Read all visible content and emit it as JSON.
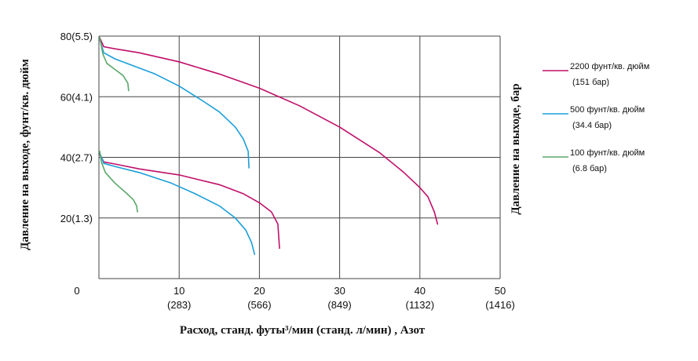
{
  "chart_data": {
    "type": "line",
    "xlabel": "Расход, станд. футы³/мин (станд. л/мин) , Азот",
    "ylabel_left": "Давление на выходе, фунт/кв. дюйм",
    "ylabel_right": "Давление на выходе, бар",
    "xlim": [
      0,
      50
    ],
    "ylim": [
      0,
      80
    ],
    "grid": true,
    "legend_position": "right",
    "x_ticks": [
      {
        "value": 0,
        "label": "0",
        "sublabel": ""
      },
      {
        "value": 10,
        "label": "10",
        "sublabel": "(283)"
      },
      {
        "value": 20,
        "label": "20",
        "sublabel": "(566)"
      },
      {
        "value": 30,
        "label": "30",
        "sublabel": "(849)"
      },
      {
        "value": 40,
        "label": "40",
        "sublabel": "(1132)"
      },
      {
        "value": 50,
        "label": "50",
        "sublabel": "(1416)"
      }
    ],
    "y_ticks": [
      {
        "value": 20,
        "label": "20(1.3)"
      },
      {
        "value": 40,
        "label": "40(2.7)"
      },
      {
        "value": 60,
        "label": "60(4.1)"
      },
      {
        "value": 80,
        "label": "80(5.5)"
      }
    ],
    "series": [
      {
        "name": "2200 фунт/кв. дюйм",
        "name_sub": "(151 бар)",
        "color": "#c0106a",
        "curves": [
          [
            [
              0.1,
              79.5
            ],
            [
              0.6,
              76.5
            ],
            [
              2,
              75.8
            ],
            [
              5,
              74.5
            ],
            [
              10,
              71.5
            ],
            [
              15,
              67.5
            ],
            [
              20,
              62.8
            ],
            [
              25,
              57
            ],
            [
              30,
              50
            ],
            [
              35,
              41.5
            ],
            [
              38,
              35
            ],
            [
              40,
              30
            ],
            [
              41,
              27
            ],
            [
              41.8,
              22
            ],
            [
              42.2,
              18
            ]
          ],
          [
            [
              0.1,
              41
            ],
            [
              0.6,
              38.5
            ],
            [
              2,
              37.8
            ],
            [
              5,
              36.2
            ],
            [
              10,
              34.2
            ],
            [
              15,
              31
            ],
            [
              18,
              28
            ],
            [
              20,
              25
            ],
            [
              21.5,
              22
            ],
            [
              22.3,
              18
            ],
            [
              22.5,
              10
            ]
          ]
        ]
      },
      {
        "name": "500 фунт/кв. дюйм",
        "name_sub": "(34.4 бар)",
        "color": "#1a9fd8",
        "curves": [
          [
            [
              0.1,
              79
            ],
            [
              0.6,
              74.5
            ],
            [
              2,
              72.5
            ],
            [
              4,
              70.5
            ],
            [
              7,
              67.5
            ],
            [
              10,
              63.5
            ],
            [
              13,
              58.5
            ],
            [
              15,
              55
            ],
            [
              17,
              50
            ],
            [
              18,
              46
            ],
            [
              18.6,
              42
            ],
            [
              18.7,
              36.5
            ]
          ],
          [
            [
              0.1,
              41.5
            ],
            [
              0.6,
              38
            ],
            [
              2,
              37
            ],
            [
              5,
              35
            ],
            [
              9,
              31.5
            ],
            [
              12,
              28
            ],
            [
              15,
              24
            ],
            [
              17,
              20
            ],
            [
              18.3,
              16
            ],
            [
              19,
              12
            ],
            [
              19.4,
              8
            ]
          ]
        ]
      },
      {
        "name": "100 фунт/кв. дюйм",
        "name_sub": "(6.8 бар)",
        "color": "#5aa86a",
        "curves": [
          [
            [
              0.1,
              79.5
            ],
            [
              0.5,
              74
            ],
            [
              1,
              71
            ],
            [
              2,
              69
            ],
            [
              3,
              67
            ],
            [
              3.6,
              64.5
            ],
            [
              3.7,
              62
            ]
          ],
          [
            [
              0.1,
              42
            ],
            [
              0.3,
              38.5
            ],
            [
              0.8,
              35
            ],
            [
              2,
              31.5
            ],
            [
              3.5,
              28
            ],
            [
              4.3,
              26
            ],
            [
              4.7,
              24
            ],
            [
              4.8,
              22
            ]
          ]
        ]
      }
    ]
  }
}
